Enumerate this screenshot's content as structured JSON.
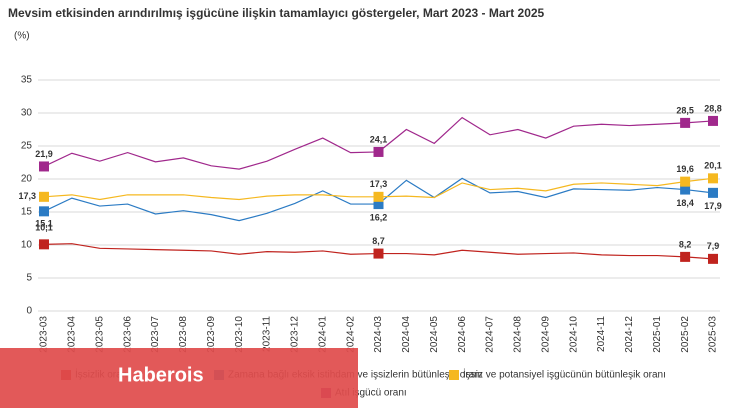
{
  "chart_data": {
    "type": "line",
    "title": "Mevsim etkisinden arındırılmış işgücüne ilişkin tamamlayıcı göstergeler, Mart 2023 - Mart 2025",
    "subtitle": "(%)",
    "categories": [
      "2023-03",
      "2023-04",
      "2023-05",
      "2023-06",
      "2023-07",
      "2023-08",
      "2023-09",
      "2023-10",
      "2023-11",
      "2023-12",
      "2024-01",
      "2024-02",
      "2024-03",
      "2024-04",
      "2024-05",
      "2024-06",
      "2024-07",
      "2024-08",
      "2024-09",
      "2024-10",
      "2024-11",
      "2024-12",
      "2025-01",
      "2025-02",
      "2025-03"
    ],
    "ylim": [
      0,
      35
    ],
    "yticks": [
      0,
      5,
      10,
      15,
      20,
      25,
      30,
      35
    ],
    "grid": true,
    "series": [
      {
        "name": "İşsizlik oranı",
        "color": "#c0231e",
        "values": [
          10.1,
          10.2,
          9.5,
          9.4,
          9.3,
          9.2,
          9.1,
          8.6,
          9.0,
          8.9,
          9.1,
          8.6,
          8.7,
          8.7,
          8.5,
          9.2,
          8.9,
          8.6,
          8.7,
          8.8,
          8.5,
          8.4,
          8.4,
          8.2,
          7.9
        ],
        "value_labels": [
          "10,1",
          null,
          null,
          null,
          null,
          null,
          null,
          null,
          null,
          null,
          null,
          null,
          "8,7",
          null,
          null,
          null,
          null,
          null,
          null,
          null,
          null,
          null,
          null,
          "8,2",
          "7,9"
        ]
      },
      {
        "name": "Zamana bağlı eksik istihdam ve işsizlerin bütünleşik oranı",
        "color": "#2b7bc4",
        "values": [
          15.1,
          17.1,
          15.9,
          16.2,
          14.7,
          15.2,
          14.6,
          13.7,
          14.8,
          16.3,
          18.2,
          16.2,
          16.2,
          19.8,
          17.2,
          20.1,
          17.9,
          18.1,
          17.2,
          18.5,
          18.4,
          18.3,
          18.7,
          18.4,
          17.9
        ],
        "value_labels": [
          "15,1",
          null,
          null,
          null,
          null,
          null,
          null,
          null,
          null,
          null,
          null,
          null,
          "16,2",
          null,
          null,
          null,
          null,
          null,
          null,
          null,
          null,
          null,
          null,
          "18,4",
          "17,9"
        ]
      },
      {
        "name": "İşsiz ve potansiyel işgücünün bütünleşik oranı",
        "color": "#f5b820",
        "values": [
          17.3,
          17.6,
          16.9,
          17.6,
          17.6,
          17.6,
          17.2,
          16.9,
          17.4,
          17.6,
          17.6,
          17.3,
          17.3,
          17.4,
          17.2,
          19.4,
          18.4,
          18.6,
          18.2,
          19.2,
          19.4,
          19.2,
          19.0,
          19.6,
          20.1
        ],
        "value_labels": [
          "17,3",
          null,
          null,
          null,
          null,
          null,
          null,
          null,
          null,
          null,
          null,
          null,
          "17,3",
          null,
          null,
          null,
          null,
          null,
          null,
          null,
          null,
          null,
          null,
          "19,6",
          "20,1"
        ]
      },
      {
        "name": "Atıl işgücü oranı",
        "color": "#a0288c",
        "values": [
          21.9,
          23.9,
          22.7,
          24.0,
          22.6,
          23.2,
          22.0,
          21.5,
          22.7,
          24.5,
          26.2,
          24.0,
          24.1,
          27.5,
          25.4,
          29.3,
          26.7,
          27.5,
          26.2,
          28.0,
          28.3,
          28.1,
          28.3,
          28.5,
          28.8
        ],
        "value_labels": [
          "21,9",
          null,
          null,
          null,
          null,
          null,
          null,
          null,
          null,
          null,
          null,
          null,
          "24,1",
          null,
          null,
          null,
          null,
          null,
          null,
          null,
          null,
          null,
          null,
          "28,5",
          "28,8"
        ]
      }
    ],
    "watermark": "Haberois"
  }
}
